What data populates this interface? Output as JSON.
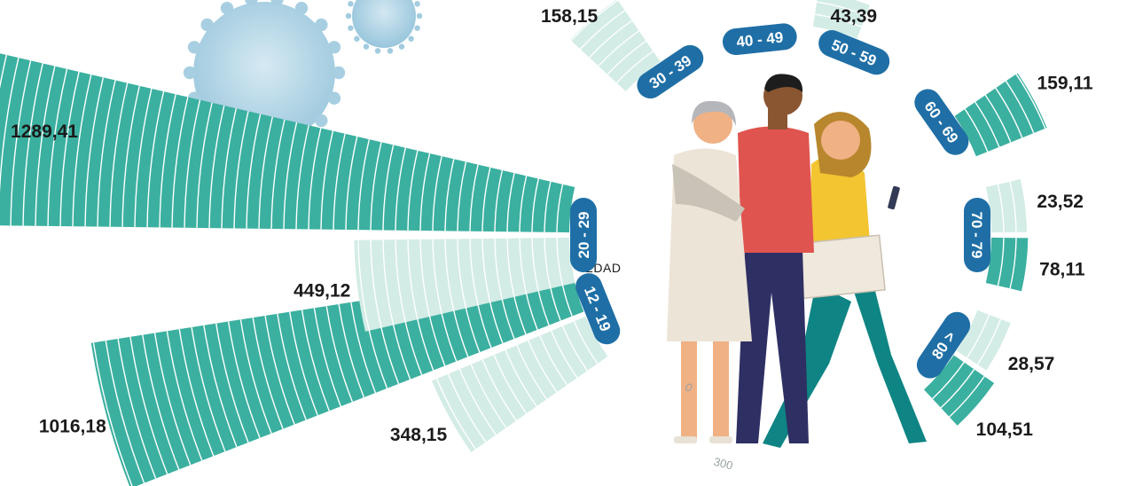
{
  "chart_data": {
    "type": "radial-bar",
    "center_label": "EDAD",
    "scale_ticks": [
      "0",
      "300"
    ],
    "colors": {
      "dark": "#3bb0a0",
      "light": "#d3ece6",
      "pill": "#1f6fa6",
      "gridline": "#ffffff"
    },
    "groups": [
      {
        "label": "12 - 19",
        "dark": "1016,18",
        "light": "348,15",
        "dark_value": 1016.18,
        "light_value": 348.15
      },
      {
        "label": "20 - 29",
        "dark": "1289,41",
        "light": "449,12",
        "dark_value": 1289.41,
        "light_value": 449.12
      },
      {
        "label": "30 - 39",
        "dark": "",
        "light": "158,15",
        "dark_value": null,
        "light_value": 158.15
      },
      {
        "label": "40 - 49",
        "dark": "",
        "light": "",
        "dark_value": null,
        "light_value": null
      },
      {
        "label": "50 - 59",
        "dark": "",
        "light": "43,39",
        "dark_value": null,
        "light_value": 43.39
      },
      {
        "label": "60 - 69",
        "dark": "159,11",
        "light": "",
        "dark_value": 159.11,
        "light_value": null
      },
      {
        "label": "70 - 79",
        "dark": "78,11",
        "light": "23,52",
        "dark_value": 78.11,
        "light_value": 23.52
      },
      {
        "label": "80 >",
        "dark": "104,51",
        "light": "28,57",
        "dark_value": 104.51,
        "light_value": 28.57
      }
    ]
  },
  "illustration": {
    "people_icon": "three-people-walking-icon",
    "virus_icon": "coronavirus-icon"
  }
}
